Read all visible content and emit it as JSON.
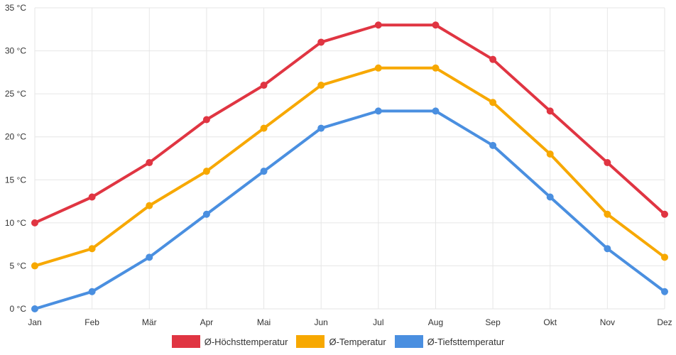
{
  "chart_data": {
    "type": "line",
    "categories": [
      "Jan",
      "Feb",
      "Mär",
      "Apr",
      "Mai",
      "Jun",
      "Jul",
      "Aug",
      "Sep",
      "Okt",
      "Nov",
      "Dez"
    ],
    "y_ticks": [
      "0 °C",
      "5 °C",
      "10 °C",
      "15 °C",
      "20 °C",
      "25 °C",
      "30 °C",
      "35 °C"
    ],
    "ylim": [
      0,
      35
    ],
    "grid": true,
    "legend_position": "bottom",
    "series": [
      {
        "name": "Ø-Höchsttemperatur",
        "color": "#e03542",
        "values": [
          10,
          13,
          17,
          22,
          26,
          31,
          33,
          33,
          29,
          23,
          17,
          11
        ]
      },
      {
        "name": "Ø-Temperatur",
        "color": "#f7a800",
        "values": [
          5,
          7,
          12,
          16,
          21,
          26,
          28,
          28,
          24,
          18,
          11,
          6
        ]
      },
      {
        "name": "Ø-Tiefsttemperatur",
        "color": "#4a8fe0",
        "values": [
          0,
          2,
          6,
          11,
          16,
          21,
          23,
          23,
          19,
          13,
          7,
          2
        ]
      }
    ]
  }
}
